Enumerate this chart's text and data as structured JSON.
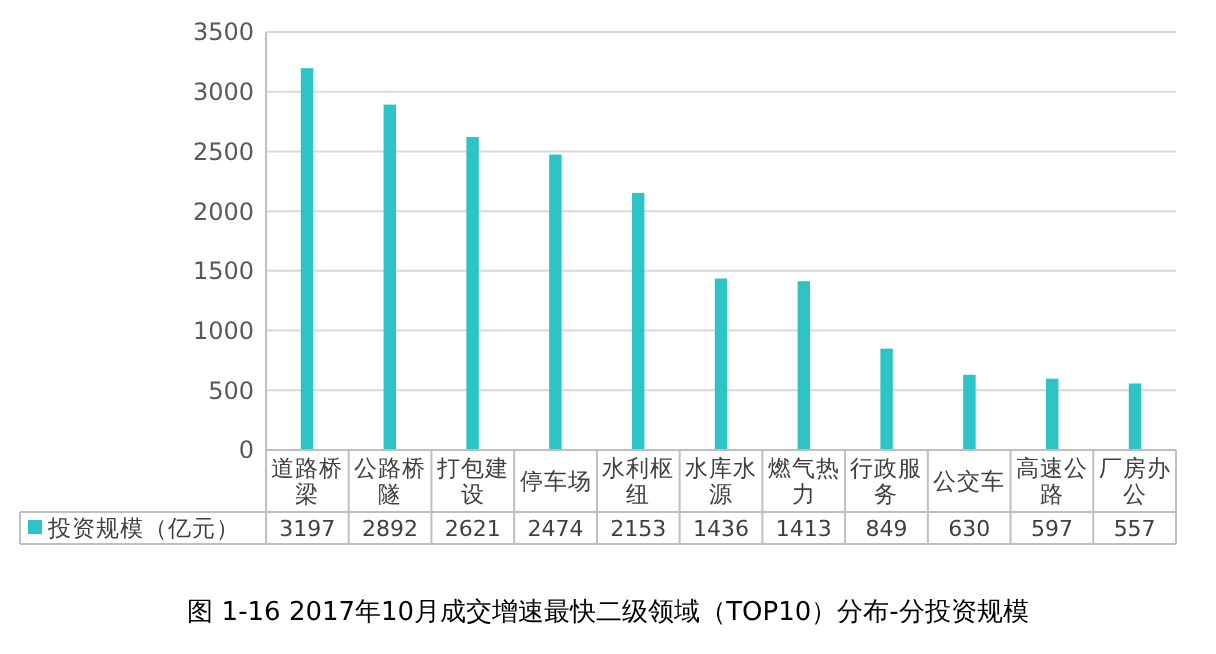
{
  "chart_data": {
    "type": "bar",
    "title": "图 1-16 2017年10月成交增速最快二级领域（TOP10）分布-分投资规模",
    "categories": [
      "道路桥梁",
      "公路桥隧",
      "打包建设",
      "停车场",
      "水利枢纽",
      "水库水源",
      "燃气热力",
      "行政服务",
      "公交车",
      "高速公路",
      "厂房办公"
    ],
    "series": [
      {
        "name": "投资规模（亿元）",
        "color": "#2ec4c6",
        "values": [
          3197,
          2892,
          2621,
          2474,
          2153,
          1436,
          1413,
          849,
          630,
          597,
          557
        ]
      }
    ],
    "ylim": [
      0,
      3500
    ],
    "yticks": [
      0,
      500,
      1000,
      1500,
      2000,
      2500,
      3000,
      3500
    ],
    "grid": "y",
    "data_labels": true,
    "legend": "bottom"
  }
}
